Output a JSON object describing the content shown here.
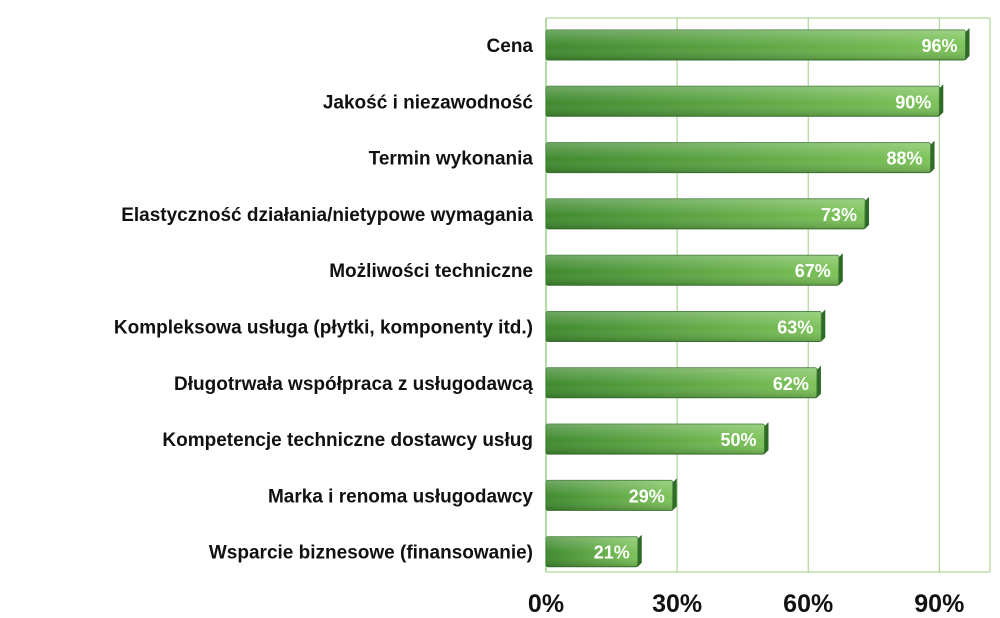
{
  "chart_data": {
    "type": "bar",
    "orientation": "horizontal",
    "title": "",
    "xlabel": "",
    "ylabel": "",
    "categories": [
      "Cena",
      "Jakość i niezawodność",
      "Termin wykonania",
      "Elastyczność działania/nietypowe wymagania",
      "Możliwości techniczne",
      "Kompleksowa usługa (płytki, komponenty itd.)",
      "Długotrwała współpraca z usługodawcą",
      "Kompetencje techniczne dostawcy usług",
      "Marka i renoma usługodawcy",
      "Wsparcie biznesowe (finansowanie)"
    ],
    "values": [
      96,
      90,
      88,
      73,
      67,
      63,
      62,
      50,
      29,
      21
    ],
    "value_labels": [
      "96%",
      "90%",
      "88%",
      "73%",
      "67%",
      "63%",
      "62%",
      "50%",
      "29%",
      "21%"
    ],
    "xlim": [
      0,
      100
    ],
    "xticks": [
      0,
      30,
      60,
      90
    ],
    "xtick_labels": [
      "0%",
      "30%",
      "60%",
      "90%"
    ],
    "grid": true,
    "legend": "none",
    "colors": {
      "bar_light": "#7dc35a",
      "bar_mid": "#4a9a3a",
      "bar_dark": "#2e6b26",
      "bar_shadow": "#3c7a32",
      "grid": "#9ccf86",
      "label_text": "#ffffff"
    }
  }
}
